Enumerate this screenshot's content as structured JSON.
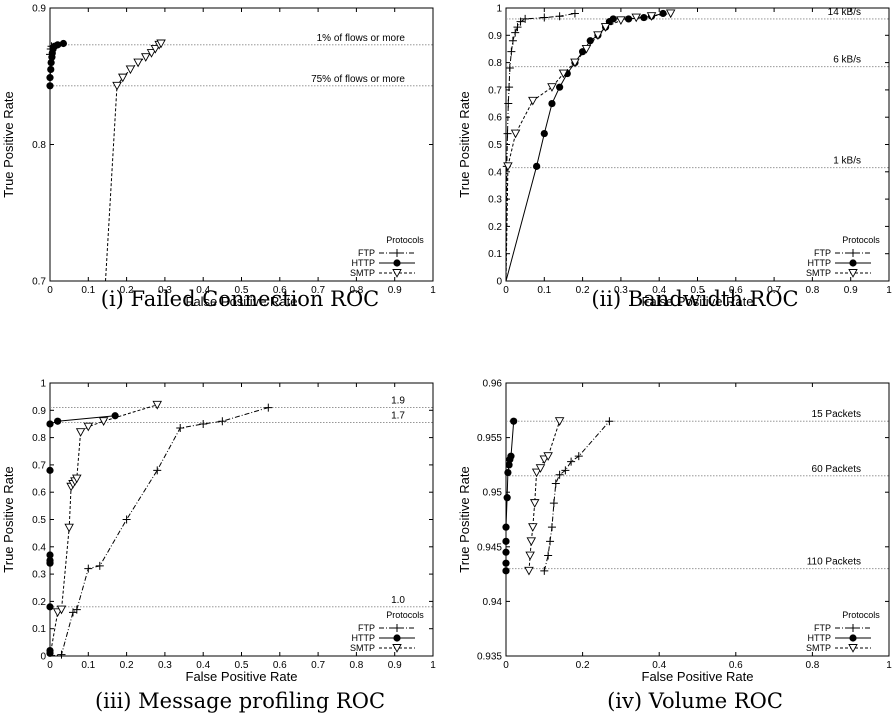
{
  "chart_data": [
    {
      "type": "line",
      "caption": "(i) Failed Connection ROC",
      "xlabel": "False Positive Rate",
      "ylabel": "True Positive Rate",
      "xlim": [
        0,
        1
      ],
      "ylim": [
        0.7,
        0.9
      ],
      "xticks": [
        "0",
        "0.1",
        "0.2",
        "0.3",
        "0.4",
        "0.5",
        "0.6",
        "0.7",
        "0.8",
        "0.9",
        "1"
      ],
      "yticks": [
        "0.7",
        "0.8",
        "0.9"
      ],
      "legend": {
        "title": "Protocols",
        "position": "bottom-right"
      },
      "series": [
        {
          "name": "FTP",
          "marker": "plus",
          "dash": "dashdot",
          "points": [
            [
              0,
              0.866
            ],
            [
              0.002,
              0.87
            ],
            [
              0.004,
              0.872
            ]
          ]
        },
        {
          "name": "HTTP",
          "marker": "circle",
          "dash": "solid",
          "points": [
            [
              0,
              0.7
            ],
            [
              0,
              0.843
            ],
            [
              0,
              0.849
            ],
            [
              0.002,
              0.855
            ],
            [
              0.003,
              0.86
            ],
            [
              0.005,
              0.864
            ],
            [
              0.006,
              0.867
            ],
            [
              0.008,
              0.87
            ],
            [
              0.012,
              0.872
            ],
            [
              0.02,
              0.873
            ],
            [
              0.035,
              0.874
            ]
          ]
        },
        {
          "name": "SMTP",
          "marker": "triangle-down",
          "dash": "dashed",
          "points": [
            [
              0.145,
              0.7
            ],
            [
              0.175,
              0.843
            ],
            [
              0.19,
              0.849
            ],
            [
              0.21,
              0.855
            ],
            [
              0.23,
              0.86
            ],
            [
              0.25,
              0.864
            ],
            [
              0.265,
              0.867
            ],
            [
              0.275,
              0.87
            ],
            [
              0.285,
              0.873
            ],
            [
              0.29,
              0.874
            ]
          ]
        }
      ],
      "thresholds": [
        {
          "label": "1% of flows or more",
          "y": 0.873
        },
        {
          "label": "75% of flows or more",
          "y": 0.843
        }
      ]
    },
    {
      "type": "line",
      "caption": "(ii) Bandwidth ROC",
      "xlabel": "False Positive Rate",
      "ylabel": "True Positive Rate",
      "xlim": [
        0,
        1
      ],
      "ylim": [
        0,
        1
      ],
      "xticks": [
        "0",
        "0.1",
        "0.2",
        "0.3",
        "0.4",
        "0.5",
        "0.6",
        "0.7",
        "0.8",
        "0.9",
        "1"
      ],
      "yticks": [
        "0",
        "0.1",
        "0.2",
        "0.3",
        "0.4",
        "0.5",
        "0.6",
        "0.7",
        "0.8",
        "0.9",
        "1"
      ],
      "legend": {
        "title": "Protocols",
        "position": "bottom-right"
      },
      "series": [
        {
          "name": "FTP",
          "marker": "plus",
          "dash": "dashdot",
          "points": [
            [
              0,
              0
            ],
            [
              0.002,
              0.42
            ],
            [
              0.004,
              0.54
            ],
            [
              0.006,
              0.65
            ],
            [
              0.008,
              0.71
            ],
            [
              0.01,
              0.78
            ],
            [
              0.014,
              0.84
            ],
            [
              0.018,
              0.88
            ],
            [
              0.024,
              0.91
            ],
            [
              0.03,
              0.93
            ],
            [
              0.038,
              0.95
            ],
            [
              0.05,
              0.96
            ],
            [
              0.1,
              0.965
            ],
            [
              0.14,
              0.97
            ],
            [
              0.18,
              0.98
            ]
          ]
        },
        {
          "name": "HTTP",
          "marker": "circle",
          "dash": "solid",
          "points": [
            [
              0,
              0
            ],
            [
              0.08,
              0.42
            ],
            [
              0.1,
              0.54
            ],
            [
              0.12,
              0.65
            ],
            [
              0.14,
              0.71
            ],
            [
              0.16,
              0.76
            ],
            [
              0.18,
              0.8
            ],
            [
              0.2,
              0.84
            ],
            [
              0.22,
              0.88
            ],
            [
              0.24,
              0.9
            ],
            [
              0.26,
              0.93
            ],
            [
              0.27,
              0.95
            ],
            [
              0.28,
              0.96
            ],
            [
              0.32,
              0.96
            ],
            [
              0.36,
              0.965
            ],
            [
              0.38,
              0.97
            ],
            [
              0.41,
              0.98
            ]
          ]
        },
        {
          "name": "SMTP",
          "marker": "triangle-down",
          "dash": "dashed",
          "points": [
            [
              0,
              0
            ],
            [
              0.005,
              0.42
            ],
            [
              0.025,
              0.54
            ],
            [
              0.07,
              0.66
            ],
            [
              0.12,
              0.71
            ],
            [
              0.15,
              0.76
            ],
            [
              0.18,
              0.8
            ],
            [
              0.21,
              0.85
            ],
            [
              0.24,
              0.9
            ],
            [
              0.26,
              0.93
            ],
            [
              0.3,
              0.955
            ],
            [
              0.34,
              0.965
            ],
            [
              0.38,
              0.97
            ],
            [
              0.43,
              0.98
            ]
          ]
        }
      ],
      "thresholds": [
        {
          "label": "14 kB/s",
          "y": 0.96
        },
        {
          "label": "6 kB/s",
          "y": 0.785
        },
        {
          "label": "1 kB/s",
          "y": 0.415
        }
      ]
    },
    {
      "type": "line",
      "caption": "(iii) Message profiling ROC",
      "xlabel": "False Positive Rate",
      "ylabel": "True Positive Rate",
      "xlim": [
        0,
        1
      ],
      "ylim": [
        0,
        1
      ],
      "xticks": [
        "0",
        "0.1",
        "0.2",
        "0.3",
        "0.4",
        "0.5",
        "0.6",
        "0.7",
        "0.8",
        "0.9",
        "1"
      ],
      "yticks": [
        "0",
        "0.1",
        "0.2",
        "0.3",
        "0.4",
        "0.5",
        "0.6",
        "0.7",
        "0.8",
        "0.9",
        "1"
      ],
      "legend": {
        "title": "Protocols",
        "position": "bottom-right"
      },
      "series": [
        {
          "name": "FTP",
          "marker": "plus",
          "dash": "dashdot",
          "points": [
            [
              0,
              0
            ],
            [
              0.03,
              0.005
            ],
            [
              0.06,
              0.16
            ],
            [
              0.07,
              0.17
            ],
            [
              0.1,
              0.32
            ],
            [
              0.13,
              0.33
            ],
            [
              0.2,
              0.5
            ],
            [
              0.28,
              0.68
            ],
            [
              0.34,
              0.835
            ],
            [
              0.4,
              0.85
            ],
            [
              0.45,
              0.86
            ],
            [
              0.57,
              0.91
            ]
          ]
        },
        {
          "name": "HTTP",
          "marker": "circle",
          "dash": "solid",
          "points": [
            [
              0,
              0
            ],
            [
              0,
              0.01
            ],
            [
              0,
              0.02
            ],
            [
              0,
              0.18
            ],
            [
              0,
              0.34
            ],
            [
              0,
              0.35
            ],
            [
              0,
              0.37
            ],
            [
              0,
              0.68
            ],
            [
              0,
              0.85
            ],
            [
              0.02,
              0.86
            ],
            [
              0.17,
              0.88
            ]
          ]
        },
        {
          "name": "SMTP",
          "marker": "triangle-down",
          "dash": "dashed",
          "points": [
            [
              0,
              0
            ],
            [
              0.02,
              0.16
            ],
            [
              0.03,
              0.17
            ],
            [
              0.05,
              0.47
            ],
            [
              0.055,
              0.62
            ],
            [
              0.06,
              0.63
            ],
            [
              0.065,
              0.64
            ],
            [
              0.07,
              0.65
            ],
            [
              0.08,
              0.82
            ],
            [
              0.1,
              0.84
            ],
            [
              0.14,
              0.86
            ],
            [
              0.28,
              0.92
            ]
          ]
        }
      ],
      "thresholds": [
        {
          "label": "1.9",
          "y": 0.91
        },
        {
          "label": "1.7",
          "y": 0.855
        },
        {
          "label": "1.0",
          "y": 0.18
        }
      ]
    },
    {
      "type": "line",
      "caption": "(iv) Volume ROC",
      "xlabel": "False Positive Rate",
      "ylabel": "True Positive Rate",
      "xlim": [
        0,
        1
      ],
      "ylim": [
        0.935,
        0.96
      ],
      "xticks": [
        "0",
        "0.2",
        "0.4",
        "0.6",
        "0.8",
        "1"
      ],
      "yticks": [
        "0.935",
        "0.94",
        "0.945",
        "0.95",
        "0.955",
        "0.96"
      ],
      "legend": {
        "title": "Protocols",
        "position": "bottom-right"
      },
      "series": [
        {
          "name": "FTP",
          "marker": "plus",
          "dash": "dashdot",
          "points": [
            [
              0.1,
              0.9428
            ],
            [
              0.11,
              0.9442
            ],
            [
              0.115,
              0.9455
            ],
            [
              0.12,
              0.9468
            ],
            [
              0.125,
              0.949
            ],
            [
              0.13,
              0.9508
            ],
            [
              0.14,
              0.9516
            ],
            [
              0.155,
              0.952
            ],
            [
              0.17,
              0.9528
            ],
            [
              0.19,
              0.9533
            ],
            [
              0.27,
              0.9565
            ]
          ]
        },
        {
          "name": "HTTP",
          "marker": "circle",
          "dash": "solid",
          "points": [
            [
              0,
              0.9428
            ],
            [
              0,
              0.9435
            ],
            [
              0,
              0.9445
            ],
            [
              0,
              0.9455
            ],
            [
              0,
              0.9468
            ],
            [
              0.003,
              0.9495
            ],
            [
              0.005,
              0.9518
            ],
            [
              0.008,
              0.9525
            ],
            [
              0.01,
              0.953
            ],
            [
              0.013,
              0.9533
            ],
            [
              0.02,
              0.9565
            ]
          ]
        },
        {
          "name": "SMTP",
          "marker": "triangle-down",
          "dash": "dashed",
          "points": [
            [
              0.06,
              0.9428
            ],
            [
              0.063,
              0.9442
            ],
            [
              0.066,
              0.9455
            ],
            [
              0.07,
              0.9468
            ],
            [
              0.075,
              0.949
            ],
            [
              0.08,
              0.9518
            ],
            [
              0.09,
              0.9522
            ],
            [
              0.1,
              0.953
            ],
            [
              0.11,
              0.9533
            ],
            [
              0.14,
              0.9565
            ]
          ]
        }
      ],
      "thresholds": [
        {
          "label": "15 Packets",
          "y": 0.9565
        },
        {
          "label": "60 Packets",
          "y": 0.9515
        },
        {
          "label": "110 Packets",
          "y": 0.943
        }
      ]
    }
  ]
}
